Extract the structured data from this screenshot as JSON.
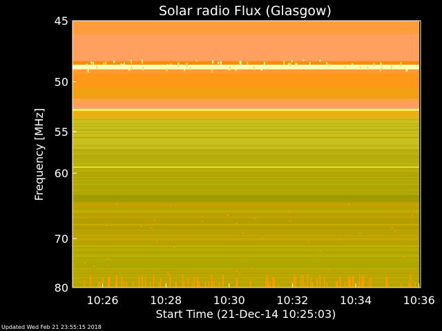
{
  "chart_data": {
    "type": "heatmap",
    "title": "Solar radio Flux (Glasgow)",
    "xlabel": "Start Time (21-Dec-14 10:25:03)",
    "ylabel": "Frequency [MHz]",
    "x_ticks": [
      "10:26",
      "10:28",
      "10:30",
      "10:32",
      "10:34",
      "10:36"
    ],
    "x_tick_minutes": [
      26,
      28,
      30,
      32,
      34,
      36
    ],
    "x_range_minutes": [
      25.05,
      36.05
    ],
    "y_ticks": [
      45,
      50,
      55,
      60,
      70,
      80
    ],
    "y_range_mhz": [
      45,
      80
    ],
    "y_scale": "reciprocal",
    "bands_mhz": [
      {
        "from": 45.0,
        "to": 46.0,
        "color": "#ff9c3c"
      },
      {
        "from": 46.0,
        "to": 48.2,
        "color": "#ffa060"
      },
      {
        "from": 48.2,
        "to": 48.5,
        "color": "#ff8c00"
      },
      {
        "from": 48.5,
        "to": 48.9,
        "color": "#ffffc0"
      },
      {
        "from": 48.9,
        "to": 49.3,
        "color": "#ff9a30"
      },
      {
        "from": 49.3,
        "to": 50.6,
        "color": "#ff9818"
      },
      {
        "from": 50.6,
        "to": 51.6,
        "color": "#f0a010"
      },
      {
        "from": 51.6,
        "to": 52.2,
        "color": "#ffa050"
      },
      {
        "from": 52.2,
        "to": 52.6,
        "color": "#ff9c70"
      },
      {
        "from": 52.6,
        "to": 52.8,
        "color": "#ffff70"
      },
      {
        "from": 52.8,
        "to": 53.6,
        "color": "#e8b010"
      },
      {
        "from": 53.6,
        "to": 57.0,
        "color": "#c8c020"
      },
      {
        "from": 57.0,
        "to": 59.1,
        "color": "#b8b010"
      },
      {
        "from": 59.1,
        "to": 59.3,
        "color": "#f0f040"
      },
      {
        "from": 59.3,
        "to": 63.0,
        "color": "#b0a808"
      },
      {
        "from": 63.0,
        "to": 64.0,
        "color": "#a09c00"
      },
      {
        "from": 64.0,
        "to": 66.0,
        "color": "#c0a000"
      },
      {
        "from": 66.0,
        "to": 68.5,
        "color": "#b89c00"
      },
      {
        "from": 68.5,
        "to": 71.5,
        "color": "#c4a400"
      },
      {
        "from": 71.5,
        "to": 76.0,
        "color": "#b0a800"
      },
      {
        "from": 76.0,
        "to": 80.0,
        "color": "#b8a400"
      }
    ],
    "colors": {
      "hot": "#ffa060",
      "mid": "#e8b010",
      "cool": "#b0a808",
      "highlight": "#ffffa0",
      "spike": "#ff9c00"
    }
  },
  "footer": {
    "updated": "Updated Wed Feb 21 23:55:15 2018"
  }
}
